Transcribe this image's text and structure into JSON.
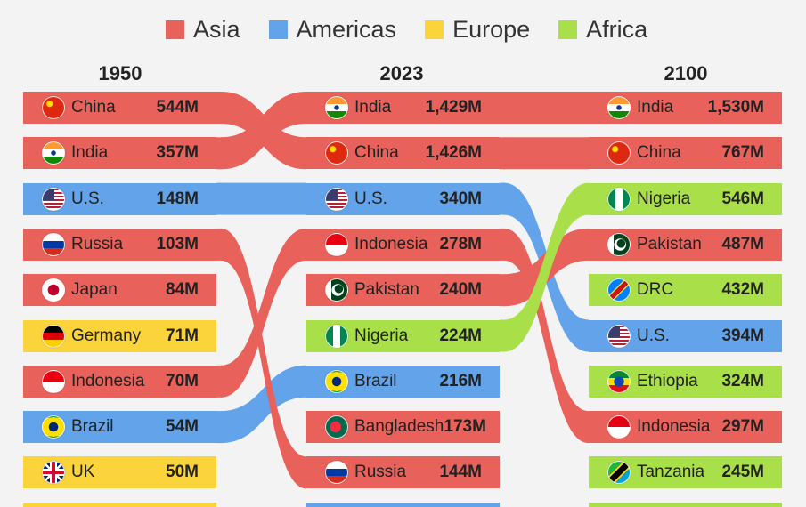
{
  "legend": [
    {
      "label": "Asia",
      "color": "#e8615a"
    },
    {
      "label": "Americas",
      "color": "#63a3ea"
    },
    {
      "label": "Europe",
      "color": "#fbd33a"
    },
    {
      "label": "Africa",
      "color": "#a9e04a"
    }
  ],
  "chart_data": {
    "type": "bump",
    "years": [
      "1950",
      "2023",
      "2100"
    ],
    "region_colors": {
      "Asia": "#e8615a",
      "Americas": "#63a3ea",
      "Europe": "#fbd33a",
      "Africa": "#a9e04a"
    },
    "columns": [
      {
        "year": "1950",
        "rows": [
          {
            "country": "China",
            "value": "544M",
            "region": "Asia",
            "flag": "china-flag"
          },
          {
            "country": "India",
            "value": "357M",
            "region": "Asia",
            "flag": "india-flag"
          },
          {
            "country": "U.S.",
            "value": "148M",
            "region": "Americas",
            "flag": "us-flag"
          },
          {
            "country": "Russia",
            "value": "103M",
            "region": "Asia",
            "flag": "russia-flag"
          },
          {
            "country": "Japan",
            "value": "84M",
            "region": "Asia",
            "flag": "japan-flag"
          },
          {
            "country": "Germany",
            "value": "71M",
            "region": "Europe",
            "flag": "germany-flag"
          },
          {
            "country": "Indonesia",
            "value": "70M",
            "region": "Asia",
            "flag": "indonesia-flag"
          },
          {
            "country": "Brazil",
            "value": "54M",
            "region": "Americas",
            "flag": "brazil-flag"
          },
          {
            "country": "UK",
            "value": "50M",
            "region": "Europe",
            "flag": "uk-flag"
          }
        ]
      },
      {
        "year": "2023",
        "rows": [
          {
            "country": "India",
            "value": "1,429M",
            "region": "Asia",
            "flag": "india-flag"
          },
          {
            "country": "China",
            "value": "1,426M",
            "region": "Asia",
            "flag": "china-flag"
          },
          {
            "country": "U.S.",
            "value": "340M",
            "region": "Americas",
            "flag": "us-flag"
          },
          {
            "country": "Indonesia",
            "value": "278M",
            "region": "Asia",
            "flag": "indonesia-flag"
          },
          {
            "country": "Pakistan",
            "value": "240M",
            "region": "Asia",
            "flag": "pakistan-flag"
          },
          {
            "country": "Nigeria",
            "value": "224M",
            "region": "Africa",
            "flag": "nigeria-flag"
          },
          {
            "country": "Brazil",
            "value": "216M",
            "region": "Americas",
            "flag": "brazil-flag"
          },
          {
            "country": "Bangladesh",
            "value": "173M",
            "region": "Asia",
            "flag": "bangladesh-flag"
          },
          {
            "country": "Russia",
            "value": "144M",
            "region": "Asia",
            "flag": "russia-flag"
          }
        ]
      },
      {
        "year": "2100",
        "rows": [
          {
            "country": "India",
            "value": "1,530M",
            "region": "Asia",
            "flag": "india-flag"
          },
          {
            "country": "China",
            "value": "767M",
            "region": "Asia",
            "flag": "china-flag"
          },
          {
            "country": "Nigeria",
            "value": "546M",
            "region": "Africa",
            "flag": "nigeria-flag"
          },
          {
            "country": "Pakistan",
            "value": "487M",
            "region": "Asia",
            "flag": "pakistan-flag"
          },
          {
            "country": "DRC",
            "value": "432M",
            "region": "Africa",
            "flag": "drc-flag"
          },
          {
            "country": "U.S.",
            "value": "394M",
            "region": "Americas",
            "flag": "us-flag"
          },
          {
            "country": "Ethiopia",
            "value": "324M",
            "region": "Africa",
            "flag": "ethiopia-flag"
          },
          {
            "country": "Indonesia",
            "value": "297M",
            "region": "Asia",
            "flag": "indonesia-flag"
          },
          {
            "country": "Tanzania",
            "value": "245M",
            "region": "Africa",
            "flag": "tanzania-flag"
          }
        ]
      }
    ]
  }
}
